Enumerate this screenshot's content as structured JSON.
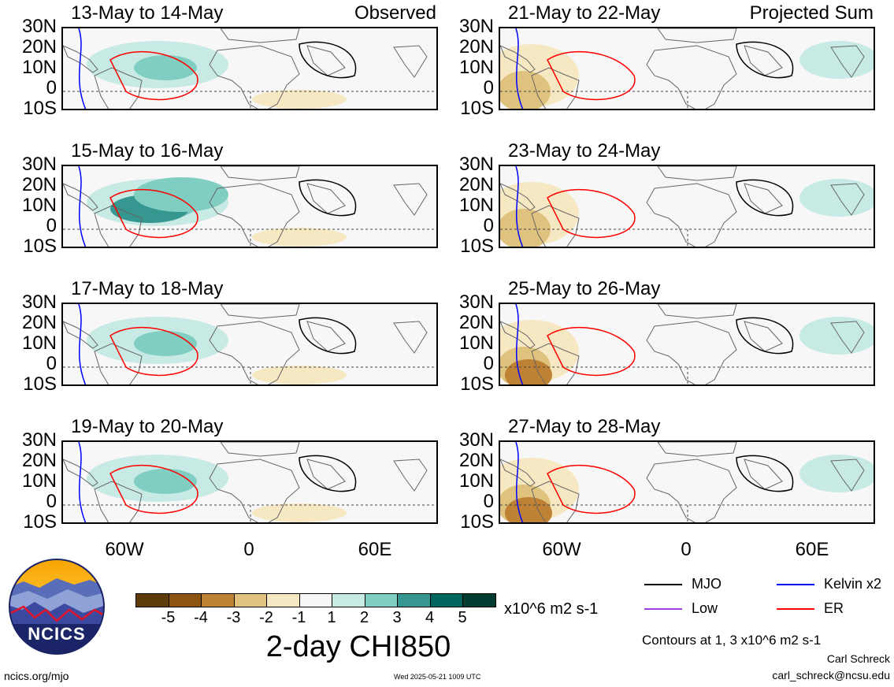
{
  "panels": [
    {
      "title": "13-May to 14-May",
      "corner": "Observed"
    },
    {
      "title": "15-May to 16-May",
      "corner": ""
    },
    {
      "title": "17-May to 18-May",
      "corner": ""
    },
    {
      "title": "19-May to 20-May",
      "corner": ""
    },
    {
      "title": "21-May to 22-May",
      "corner": "Projected Sum"
    },
    {
      "title": "23-May to 24-May",
      "corner": ""
    },
    {
      "title": "25-May to 26-May",
      "corner": ""
    },
    {
      "title": "27-May to 28-May",
      "corner": ""
    }
  ],
  "lat_labels": [
    "30N",
    "20N",
    "10N",
    "0",
    "10S"
  ],
  "lon_labels": [
    "60W",
    "0",
    "60E"
  ],
  "colorbar": {
    "colors": [
      "#5e3c0a",
      "#8c5410",
      "#bf8133",
      "#dfc27d",
      "#f6e8c3",
      "#f7f7f7",
      "#c7eae5",
      "#80cdc1",
      "#35978f",
      "#01665e",
      "#003c30"
    ],
    "ticks": [
      "-5",
      "-4",
      "-3",
      "-2",
      "-1",
      "1",
      "2",
      "3",
      "4",
      "5"
    ],
    "units": "x10^6 m2 s-1",
    "title": "2-day CHI850"
  },
  "legend": [
    {
      "label": "MJO",
      "color": "#000000"
    },
    {
      "label": "Kelvin x2",
      "color": "#0000ff"
    },
    {
      "label": "Low",
      "color": "#a040e0"
    },
    {
      "label": "ER",
      "color": "#ff0000"
    }
  ],
  "contours_note": "Contours at 1, 3 x10^6 m2 s-1",
  "author": "Carl Schreck",
  "email": "carl_schreck@ncsu.edu",
  "site": "ncics.org/mjo",
  "timestamp": "Wed 2025-05-21 1009 UTC",
  "logo_text": "NCICS"
}
